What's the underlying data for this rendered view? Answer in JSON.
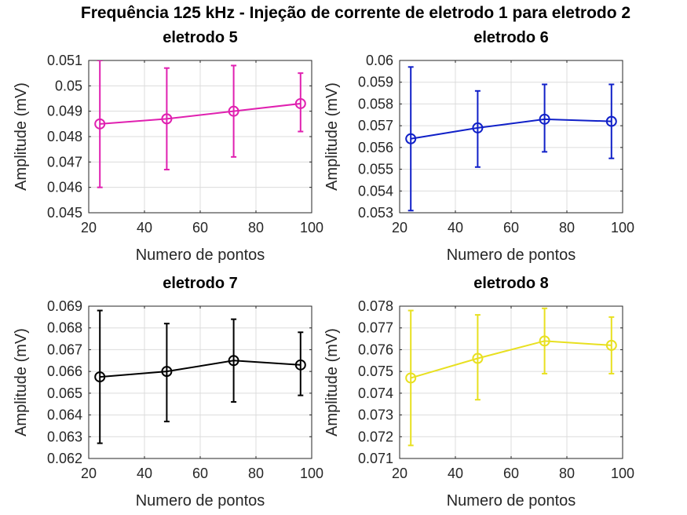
{
  "figure": {
    "suptitle": "Frequência 125 kHz - Injeção de corrente de eletrodo 1 para eletrodo 2"
  },
  "chart_data": [
    {
      "type": "line",
      "title": "eletrodo 5",
      "xlabel": "Numero de pontos",
      "ylabel": "Amplitude (mV)",
      "color": "#e020b0",
      "xlim": [
        20,
        100
      ],
      "ylim": [
        0.045,
        0.051
      ],
      "xticks": [
        20,
        40,
        60,
        80,
        100
      ],
      "yticks": [
        0.045,
        0.046,
        0.047,
        0.048,
        0.049,
        0.05,
        0.051
      ],
      "ytick_labels": [
        "0.045",
        "0.046",
        "0.047",
        "0.048",
        "0.049",
        "0.05",
        "0.051"
      ],
      "grid": true,
      "x": [
        24,
        48,
        72,
        96
      ],
      "y": [
        0.0485,
        0.0487,
        0.049,
        0.0493
      ],
      "err_low": [
        0.046,
        0.0467,
        0.0472,
        0.0482
      ],
      "err_high": [
        0.051,
        0.0507,
        0.0508,
        0.0505
      ]
    },
    {
      "type": "line",
      "title": "eletrodo 6",
      "xlabel": "Numero de pontos",
      "ylabel": "Amplitude (mV)",
      "color": "#1020c8",
      "xlim": [
        20,
        100
      ],
      "ylim": [
        0.053,
        0.06
      ],
      "xticks": [
        20,
        40,
        60,
        80,
        100
      ],
      "yticks": [
        0.053,
        0.054,
        0.055,
        0.056,
        0.057,
        0.058,
        0.059,
        0.06
      ],
      "ytick_labels": [
        "0.053",
        "0.054",
        "0.055",
        "0.056",
        "0.057",
        "0.058",
        "0.059",
        "0.06"
      ],
      "grid": true,
      "x": [
        24,
        48,
        72,
        96
      ],
      "y": [
        0.0564,
        0.0569,
        0.0573,
        0.0572
      ],
      "err_low": [
        0.0531,
        0.0551,
        0.0558,
        0.0555
      ],
      "err_high": [
        0.0597,
        0.0586,
        0.0589,
        0.0589
      ]
    },
    {
      "type": "line",
      "title": "eletrodo 7",
      "xlabel": "Numero de pontos",
      "ylabel": "Amplitude (mV)",
      "color": "#000000",
      "xlim": [
        20,
        100
      ],
      "ylim": [
        0.062,
        0.069
      ],
      "xticks": [
        20,
        40,
        60,
        80,
        100
      ],
      "yticks": [
        0.062,
        0.063,
        0.064,
        0.065,
        0.066,
        0.067,
        0.068,
        0.069
      ],
      "ytick_labels": [
        "0.062",
        "0.063",
        "0.064",
        "0.065",
        "0.066",
        "0.067",
        "0.068",
        "0.069"
      ],
      "grid": true,
      "x": [
        24,
        48,
        72,
        96
      ],
      "y": [
        0.06575,
        0.066,
        0.0665,
        0.0663
      ],
      "err_low": [
        0.0627,
        0.0637,
        0.0646,
        0.0649
      ],
      "err_high": [
        0.0688,
        0.0682,
        0.0684,
        0.0678
      ]
    },
    {
      "type": "line",
      "title": "eletrodo 8",
      "xlabel": "Numero de pontos",
      "ylabel": "Amplitude (mV)",
      "color": "#e8e020",
      "xlim": [
        20,
        100
      ],
      "ylim": [
        0.071,
        0.078
      ],
      "xticks": [
        20,
        40,
        60,
        80,
        100
      ],
      "yticks": [
        0.071,
        0.072,
        0.073,
        0.074,
        0.075,
        0.076,
        0.077,
        0.078
      ],
      "ytick_labels": [
        "0.071",
        "0.072",
        "0.073",
        "0.074",
        "0.075",
        "0.076",
        "0.077",
        "0.078"
      ],
      "grid": true,
      "x": [
        24,
        48,
        72,
        96
      ],
      "y": [
        0.0747,
        0.0756,
        0.0764,
        0.0762
      ],
      "err_low": [
        0.0716,
        0.0737,
        0.0749,
        0.0749
      ],
      "err_high": [
        0.0778,
        0.0776,
        0.0779,
        0.0775
      ]
    }
  ]
}
